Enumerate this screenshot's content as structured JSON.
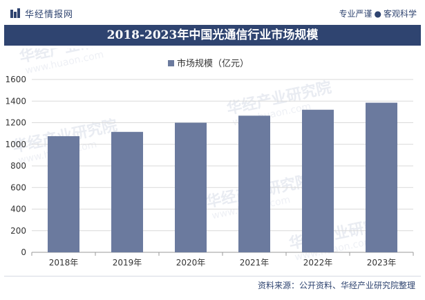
{
  "header": {
    "brand": "华经情报网",
    "slogan_left": "专业严谨",
    "slogan_dot": "●",
    "slogan_right": "客观科学"
  },
  "watermark": {
    "cn": "华经产业研究院",
    "en": "www.huaon.com"
  },
  "colors": {
    "brand": "#2f4470",
    "bar": "#6b7a9e",
    "grid": "#d9d9d9",
    "axis": "#999999"
  },
  "chart_data": {
    "type": "bar",
    "title": "2018-2023年中国光通信行业市场规模",
    "legend_label": "市场规模（亿元）",
    "legend_position": "top-center",
    "categories": [
      "2018年",
      "2019年",
      "2020年",
      "2021年",
      "2022年",
      "2023年"
    ],
    "series": [
      {
        "name": "市场规模（亿元）",
        "values": [
          1075,
          1115,
          1200,
          1265,
          1320,
          1385
        ]
      }
    ],
    "ylim": [
      0,
      1600
    ],
    "yticks": [
      0,
      200,
      400,
      600,
      800,
      1000,
      1200,
      1400,
      1600
    ],
    "grid": true,
    "xlabel": "",
    "ylabel": ""
  },
  "footer": {
    "source": "资料来源：公开资料、华经产业研究院整理"
  }
}
